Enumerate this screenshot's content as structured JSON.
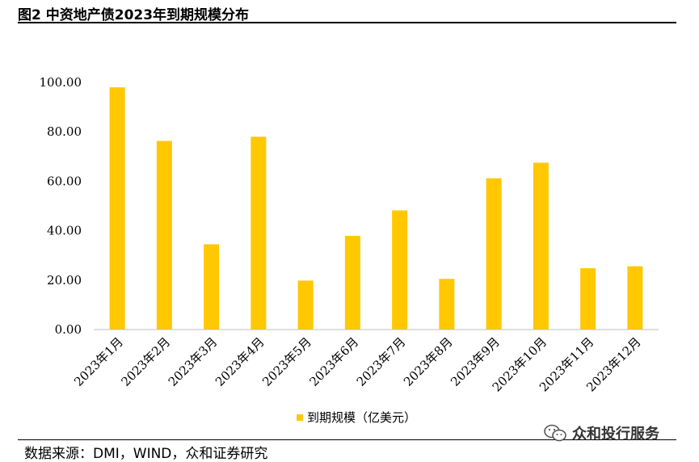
{
  "header": {
    "title": "图2 中资地产债2023年到期规模分布"
  },
  "footer": {
    "source": "数据来源：DMI，WIND，众和证券研究",
    "watermark": "众和投行服务"
  },
  "colors": {
    "bar": "#FFC800",
    "axis": "#BFBFBF"
  },
  "chart_data": {
    "type": "bar",
    "categories": [
      "2023年1月",
      "2023年2月",
      "2023年3月",
      "2023年4月",
      "2023年5月",
      "2023年6月",
      "2023年7月",
      "2023年8月",
      "2023年9月",
      "2023年10月",
      "2023年11月",
      "2023年12月"
    ],
    "series": [
      {
        "name": "到期规模（亿美元）",
        "values": [
          98.0,
          76.3,
          34.5,
          78.0,
          19.8,
          37.9,
          48.2,
          20.5,
          61.2,
          67.5,
          24.8,
          25.6
        ]
      }
    ],
    "ylim": [
      0,
      100
    ],
    "yticks": [
      "0.00",
      "20.00",
      "40.00",
      "60.00",
      "80.00",
      "100.00"
    ],
    "grid": false,
    "legend_position": "bottom-center",
    "title": "",
    "xlabel": "",
    "ylabel": ""
  }
}
